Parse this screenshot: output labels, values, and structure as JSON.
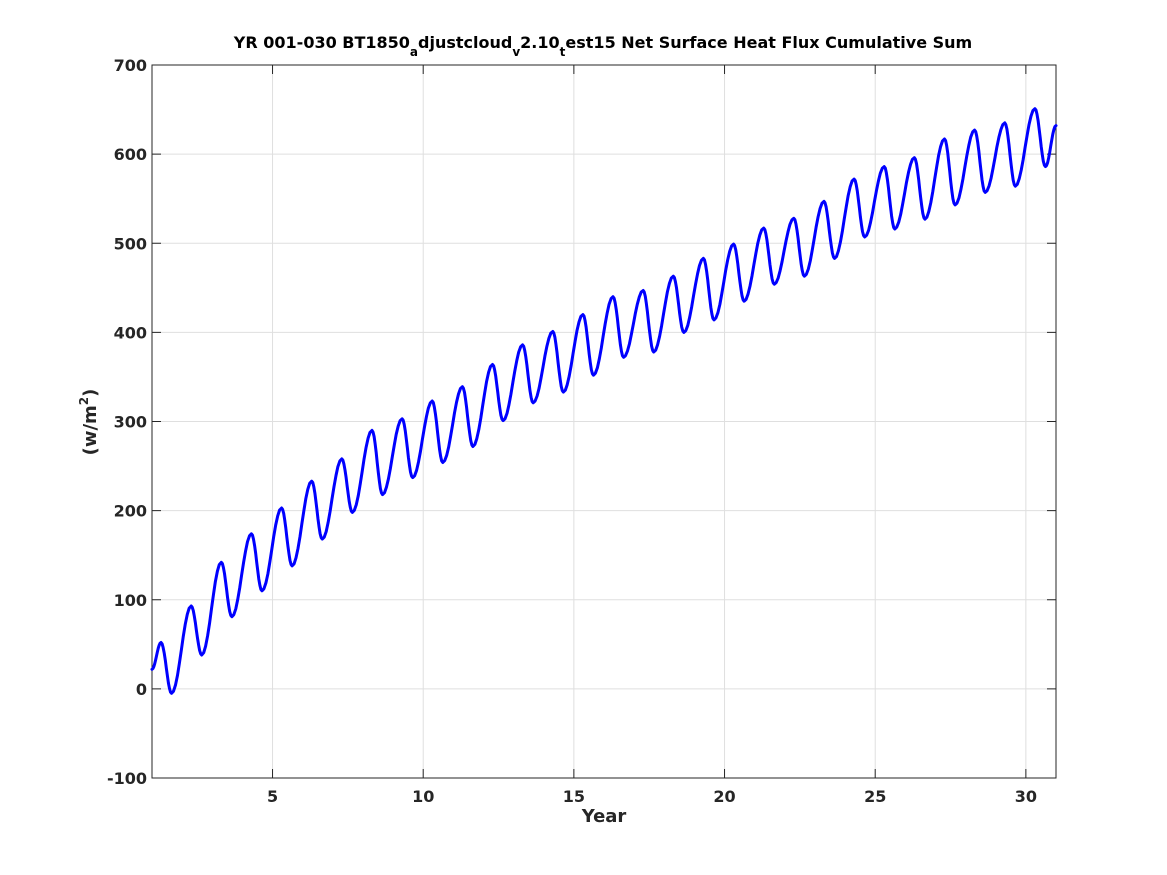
{
  "chart_data": {
    "type": "line",
    "title_parts": [
      {
        "t": "YR 001-030 BT1850",
        "sub": false
      },
      {
        "t": "a",
        "sub": true
      },
      {
        "t": "djustcloud",
        "sub": false
      },
      {
        "t": "v",
        "sub": true
      },
      {
        "t": "2.10",
        "sub": false
      },
      {
        "t": "t",
        "sub": true
      },
      {
        "t": "est15 Net Surface Heat Flux  Cumulative Sum",
        "sub": false
      }
    ],
    "xlabel": "Year",
    "ylabel_base": "(w/m",
    "ylabel_sup": "2",
    "ylabel_end": ")",
    "xlim": [
      1,
      31
    ],
    "ylim": [
      -100,
      700
    ],
    "xticks": [
      5,
      10,
      15,
      20,
      25,
      30
    ],
    "yticks": [
      -100,
      0,
      100,
      200,
      300,
      400,
      500,
      600,
      700
    ],
    "grid": true,
    "colors": {
      "line": "#0000ff",
      "axes": "#262626",
      "grid": "#dfdfdf"
    },
    "series": [
      {
        "mins": [
          [
            1.0,
            22
          ],
          [
            1.65,
            -5
          ],
          [
            2.65,
            38
          ],
          [
            3.65,
            81
          ],
          [
            4.65,
            110
          ],
          [
            5.65,
            138
          ],
          [
            6.65,
            168
          ],
          [
            7.65,
            198
          ],
          [
            8.65,
            218
          ],
          [
            9.65,
            237
          ],
          [
            10.65,
            254
          ],
          [
            11.65,
            272
          ],
          [
            12.65,
            301
          ],
          [
            13.65,
            321
          ],
          [
            14.65,
            333
          ],
          [
            15.65,
            352
          ],
          [
            16.65,
            372
          ],
          [
            17.65,
            378
          ],
          [
            18.65,
            400
          ],
          [
            19.65,
            414
          ],
          [
            20.65,
            435
          ],
          [
            21.65,
            454
          ],
          [
            22.65,
            463
          ],
          [
            23.65,
            483
          ],
          [
            24.65,
            507
          ],
          [
            25.65,
            516
          ],
          [
            26.65,
            527
          ],
          [
            27.65,
            543
          ],
          [
            28.65,
            557
          ],
          [
            29.65,
            564
          ],
          [
            30.65,
            586
          ],
          [
            31.0,
            632
          ]
        ],
        "maxs": [
          [
            1.3,
            52
          ],
          [
            2.3,
            93
          ],
          [
            3.3,
            142
          ],
          [
            4.3,
            174
          ],
          [
            5.3,
            203
          ],
          [
            6.3,
            233
          ],
          [
            7.3,
            258
          ],
          [
            8.3,
            290
          ],
          [
            9.3,
            303
          ],
          [
            10.3,
            323
          ],
          [
            11.3,
            339
          ],
          [
            12.3,
            364
          ],
          [
            13.3,
            386
          ],
          [
            14.3,
            401
          ],
          [
            15.3,
            420
          ],
          [
            16.3,
            440
          ],
          [
            17.3,
            447
          ],
          [
            18.3,
            463
          ],
          [
            19.3,
            483
          ],
          [
            20.3,
            499
          ],
          [
            21.3,
            517
          ],
          [
            22.3,
            528
          ],
          [
            23.3,
            547
          ],
          [
            24.3,
            572
          ],
          [
            25.3,
            586
          ],
          [
            26.3,
            596
          ],
          [
            27.3,
            617
          ],
          [
            28.3,
            627
          ],
          [
            29.3,
            635
          ],
          [
            30.3,
            651
          ]
        ]
      }
    ]
  }
}
